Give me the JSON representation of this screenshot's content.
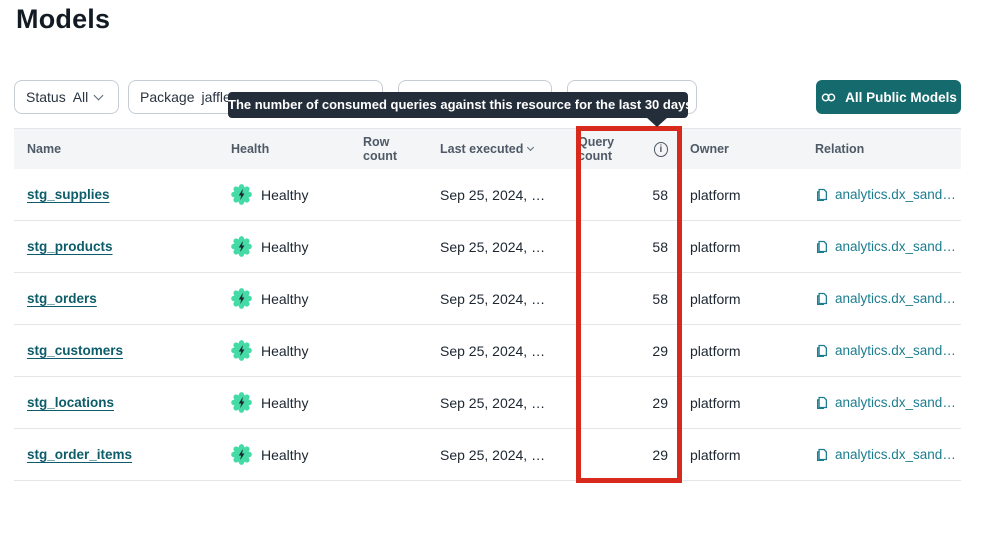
{
  "page": {
    "title": "Models"
  },
  "filters": {
    "status": {
      "label": "Status",
      "value": "All"
    },
    "package": {
      "label": "Package",
      "value": "jaffle_"
    },
    "hidden_filter_1": {
      "label": "",
      "value": ""
    },
    "hidden_filter_2": {
      "label": "",
      "value": ""
    }
  },
  "toolbar": {
    "all_public_models_label": "All Public Models"
  },
  "tooltip": {
    "text": "The number of consumed queries against this resource for the last 30 days"
  },
  "table": {
    "columns": [
      "Name",
      "Health",
      "Row count",
      "Last executed",
      "Query count",
      "Owner",
      "Relation"
    ],
    "rows": [
      {
        "name": "stg_supplies",
        "health": "Healthy",
        "row_count": "",
        "last_executed": "Sep 25, 2024, …",
        "query_count": "58",
        "owner": "platform",
        "relation": "analytics.dx_sand…"
      },
      {
        "name": "stg_products",
        "health": "Healthy",
        "row_count": "",
        "last_executed": "Sep 25, 2024, …",
        "query_count": "58",
        "owner": "platform",
        "relation": "analytics.dx_sand…"
      },
      {
        "name": "stg_orders",
        "health": "Healthy",
        "row_count": "",
        "last_executed": "Sep 25, 2024, …",
        "query_count": "58",
        "owner": "platform",
        "relation": "analytics.dx_sand…"
      },
      {
        "name": "stg_customers",
        "health": "Healthy",
        "row_count": "",
        "last_executed": "Sep 25, 2024, …",
        "query_count": "29",
        "owner": "platform",
        "relation": "analytics.dx_sand…"
      },
      {
        "name": "stg_locations",
        "health": "Healthy",
        "row_count": "",
        "last_executed": "Sep 25, 2024, …",
        "query_count": "29",
        "owner": "platform",
        "relation": "analytics.dx_sand…"
      },
      {
        "name": "stg_order_items",
        "health": "Healthy",
        "row_count": "",
        "last_executed": "Sep 25, 2024, …",
        "query_count": "29",
        "owner": "platform",
        "relation": "analytics.dx_sand…"
      }
    ]
  },
  "icons": {
    "filter_chevron": "chevron-down",
    "sort_chevron": "chevron-down",
    "info": "circled-i",
    "button_link": "chain-link",
    "health": "lightning-badge",
    "relation": "document"
  },
  "colors": {
    "accent_teal_button": "#156a6d",
    "link_teal_dark": "#0c5d69",
    "link_teal_light": "#1b7d8f",
    "health_green": "#45dba6",
    "tooltip_bg": "#242e3a",
    "annotation_red": "#d8291d",
    "table_header_bg": "#f3f5f7"
  }
}
